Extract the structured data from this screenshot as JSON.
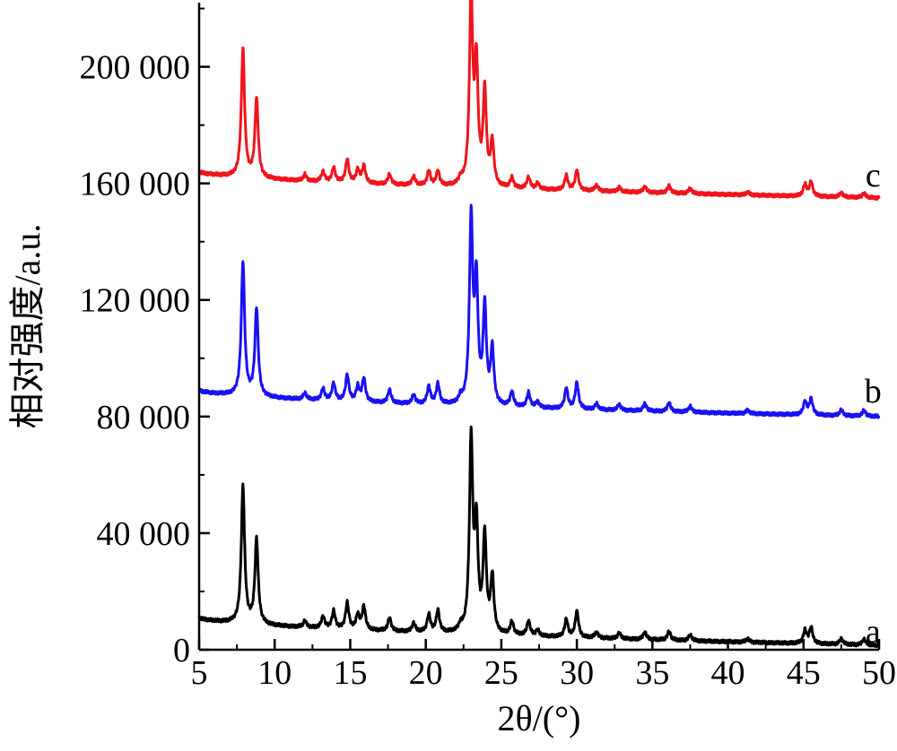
{
  "chart_data": {
    "type": "line",
    "title": "",
    "xlabel": "2θ/(°)",
    "ylabel": "相对强度/a.u.",
    "xlim": [
      5,
      50
    ],
    "ylim": [
      0,
      222000
    ],
    "xticks": [
      5,
      10,
      15,
      20,
      25,
      30,
      35,
      40,
      45,
      50
    ],
    "xtick_labels": [
      "5",
      "10",
      "15",
      "20",
      "25",
      "30",
      "35",
      "40",
      "45",
      "50"
    ],
    "yticks": [
      0,
      40000,
      80000,
      120000,
      160000,
      200000
    ],
    "ytick_labels": [
      "0",
      "40 000",
      "80 000",
      "120 000",
      "160 000",
      "200 000"
    ],
    "grid": false,
    "legend": "none",
    "series": [
      {
        "name": "a",
        "label_x": 49.6,
        "label_y": 5500,
        "color": "#000000",
        "start": 11000,
        "end": 1500,
        "peaks": [
          [
            7.9,
            47000
          ],
          [
            8.8,
            29000
          ],
          [
            12.0,
            2200
          ],
          [
            13.2,
            4000
          ],
          [
            13.9,
            6000
          ],
          [
            14.8,
            9000
          ],
          [
            15.5,
            5000
          ],
          [
            15.9,
            8000
          ],
          [
            17.6,
            4500
          ],
          [
            19.2,
            3000
          ],
          [
            20.2,
            6000
          ],
          [
            20.8,
            7500
          ],
          [
            22.3,
            2000
          ],
          [
            23.0,
            66000
          ],
          [
            23.35,
            35000
          ],
          [
            23.9,
            33000
          ],
          [
            24.4,
            19000
          ],
          [
            25.7,
            4500
          ],
          [
            26.8,
            5000
          ],
          [
            27.4,
            2000
          ],
          [
            29.3,
            6000
          ],
          [
            30.0,
            9000
          ],
          [
            31.3,
            2000
          ],
          [
            32.8,
            2000
          ],
          [
            34.5,
            2500
          ],
          [
            36.1,
            3000
          ],
          [
            37.5,
            2000
          ],
          [
            41.3,
            1200
          ],
          [
            45.1,
            4500
          ],
          [
            45.5,
            5500
          ],
          [
            47.5,
            2000
          ],
          [
            49.0,
            2000
          ]
        ]
      },
      {
        "name": "b",
        "label_x": 49.6,
        "label_y": 88000,
        "color": "#1a10f2",
        "start": 89000,
        "end": 80000,
        "peaks": [
          [
            7.9,
            46000
          ],
          [
            8.8,
            30000
          ],
          [
            12.0,
            2200
          ],
          [
            13.2,
            4000
          ],
          [
            13.9,
            6000
          ],
          [
            14.8,
            9000
          ],
          [
            15.5,
            5000
          ],
          [
            15.9,
            8000
          ],
          [
            17.6,
            4500
          ],
          [
            19.2,
            3000
          ],
          [
            20.2,
            6000
          ],
          [
            20.8,
            7000
          ],
          [
            22.3,
            2000
          ],
          [
            23.0,
            63000
          ],
          [
            23.35,
            40000
          ],
          [
            23.9,
            33000
          ],
          [
            24.4,
            19000
          ],
          [
            25.7,
            5000
          ],
          [
            26.8,
            5000
          ],
          [
            27.4,
            2000
          ],
          [
            29.3,
            7000
          ],
          [
            30.0,
            9000
          ],
          [
            31.3,
            2000
          ],
          [
            32.8,
            2000
          ],
          [
            34.5,
            2500
          ],
          [
            36.1,
            3000
          ],
          [
            37.5,
            2000
          ],
          [
            41.3,
            1200
          ],
          [
            45.1,
            4500
          ],
          [
            45.5,
            5500
          ],
          [
            47.5,
            2000
          ],
          [
            49.0,
            2000
          ]
        ]
      },
      {
        "name": "c",
        "label_x": 49.6,
        "label_y": 162000,
        "color": "#f0141c",
        "start": 164000,
        "end": 155000,
        "peaks": [
          [
            7.9,
            44000
          ],
          [
            8.8,
            27000
          ],
          [
            12.0,
            2200
          ],
          [
            13.2,
            3500
          ],
          [
            13.9,
            5000
          ],
          [
            14.8,
            8000
          ],
          [
            15.5,
            4500
          ],
          [
            15.9,
            6000
          ],
          [
            17.6,
            3500
          ],
          [
            19.2,
            3000
          ],
          [
            20.2,
            5000
          ],
          [
            20.8,
            5000
          ],
          [
            22.3,
            2000
          ],
          [
            23.0,
            64000
          ],
          [
            23.35,
            40000
          ],
          [
            23.9,
            32000
          ],
          [
            24.4,
            15000
          ],
          [
            25.7,
            3500
          ],
          [
            26.8,
            4000
          ],
          [
            27.4,
            2000
          ],
          [
            29.3,
            5000
          ],
          [
            30.0,
            7000
          ],
          [
            31.3,
            2000
          ],
          [
            32.8,
            1500
          ],
          [
            34.5,
            2000
          ],
          [
            36.1,
            2500
          ],
          [
            37.5,
            1800
          ],
          [
            41.3,
            1000
          ],
          [
            45.1,
            4000
          ],
          [
            45.5,
            5000
          ],
          [
            47.5,
            1500
          ],
          [
            49.0,
            1500
          ]
        ]
      }
    ]
  }
}
